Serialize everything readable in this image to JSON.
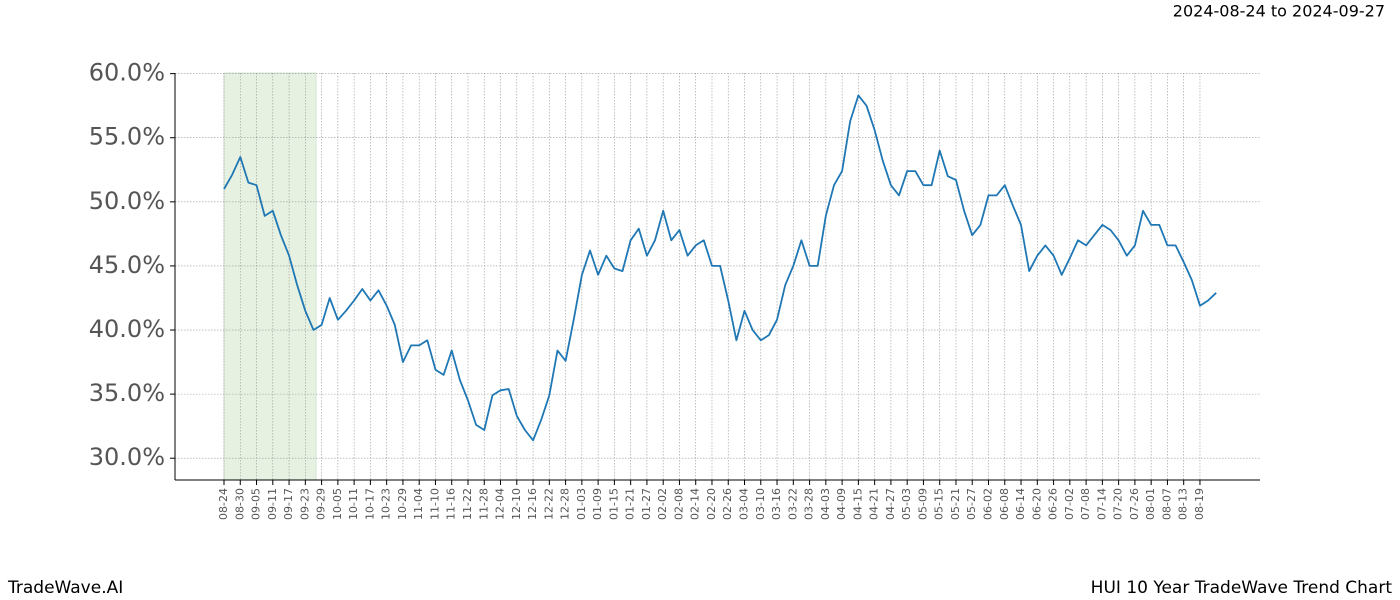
{
  "chart_data": {
    "type": "line",
    "title": "HUI 10 Year TradeWave Trend Chart",
    "subtitle": "2024-08-24 to 2024-09-27",
    "source": "TradeWave.AI",
    "categories": [
      "08-24",
      null,
      "08-30",
      null,
      "09-05",
      null,
      "09-11",
      null,
      "09-17",
      null,
      "09-23",
      null,
      "09-29",
      null,
      "10-05",
      null,
      "10-11",
      null,
      "10-17",
      null,
      "10-23",
      null,
      "10-29",
      null,
      "11-04",
      null,
      "11-10",
      null,
      "11-16",
      null,
      "11-22",
      null,
      "11-28",
      null,
      "12-04",
      null,
      "12-10",
      null,
      "12-16",
      null,
      "12-22",
      null,
      "12-28",
      null,
      "01-03",
      null,
      "01-09",
      null,
      "01-15",
      null,
      "01-21",
      null,
      "01-27",
      null,
      "02-02",
      null,
      "02-08",
      null,
      "02-14",
      null,
      "02-20",
      null,
      "02-26",
      null,
      "03-04",
      null,
      "03-10",
      null,
      "03-16",
      null,
      "03-22",
      null,
      "03-28",
      null,
      "04-03",
      null,
      "04-09",
      null,
      "04-15",
      null,
      "04-21",
      null,
      "04-27",
      null,
      "05-03",
      null,
      "05-09",
      null,
      "05-15",
      null,
      "05-21",
      null,
      "05-27",
      null,
      "06-02",
      null,
      "06-08",
      null,
      "06-14",
      null,
      "06-20",
      null,
      "06-26",
      null,
      "07-02",
      null,
      "07-08",
      null,
      "07-14",
      null,
      "07-20",
      null,
      "07-26",
      null,
      "08-01",
      null,
      "08-07",
      null,
      "08-13",
      null,
      "08-19",
      null,
      null
    ],
    "values": [
      51.0,
      52.1,
      53.5,
      51.5,
      51.3,
      48.9,
      49.3,
      47.4,
      45.8,
      43.5,
      41.5,
      40.0,
      40.4,
      42.5,
      40.8,
      41.5,
      42.3,
      43.2,
      42.3,
      43.1,
      41.9,
      40.4,
      37.5,
      38.8,
      38.8,
      39.2,
      36.9,
      36.5,
      38.4,
      36.1,
      34.5,
      32.6,
      32.2,
      34.9,
      35.3,
      35.4,
      33.3,
      32.2,
      31.4,
      33.0,
      34.9,
      38.4,
      37.6,
      40.8,
      44.3,
      46.2,
      44.3,
      45.8,
      44.8,
      44.6,
      47.0,
      47.9,
      45.8,
      47.0,
      49.3,
      47.0,
      47.8,
      45.8,
      46.6,
      47.0,
      45.0,
      45.0,
      42.3,
      39.2,
      41.5,
      40.0,
      39.2,
      39.6,
      40.8,
      43.5,
      45.0,
      47.0,
      45.0,
      45.0,
      48.9,
      51.3,
      52.4,
      56.3,
      58.3,
      57.5,
      55.6,
      53.2,
      51.3,
      50.5,
      52.4,
      52.4,
      51.3,
      51.3,
      54.0,
      52.0,
      51.7,
      49.3,
      47.4,
      48.2,
      50.5,
      50.5,
      51.3,
      49.7,
      48.2,
      44.6,
      45.8,
      46.6,
      45.8,
      44.3,
      45.6,
      47.0,
      46.6,
      47.4,
      48.2,
      47.8,
      47.0,
      45.8,
      46.6,
      49.3,
      48.2,
      48.2,
      46.6,
      46.6,
      45.3,
      43.9,
      41.9,
      42.3,
      42.9
    ],
    "color": "#1f77b4",
    "ylim": [
      28.3,
      60.05
    ],
    "yticks": [
      {
        "value": 30,
        "label": "30.0%"
      },
      {
        "value": 35,
        "label": "35.0%"
      },
      {
        "value": 40,
        "label": "40.0%"
      },
      {
        "value": 45,
        "label": "45.0%"
      },
      {
        "value": 50,
        "label": "50.0%"
      },
      {
        "value": 55,
        "label": "55.0%"
      },
      {
        "value": 60,
        "label": "60.0%"
      }
    ],
    "grid": true
  }
}
